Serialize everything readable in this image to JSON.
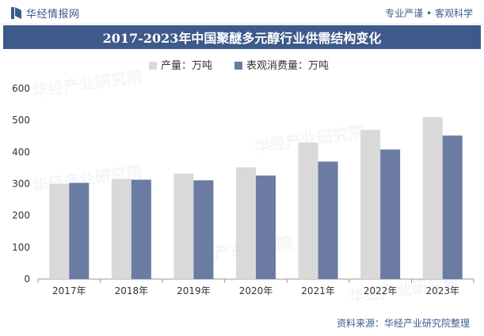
{
  "header": {
    "brand_name": "华经情报网",
    "tagline": "专业严谨 • 客观科学"
  },
  "title": "2017-2023年中国聚醚多元醇行业供需结构变化",
  "source": "资料来源：华经产业研究院整理",
  "watermark": "华经产业研究院",
  "colors": {
    "production": "#d9d9d9",
    "consumption": "#6b7ba3",
    "title_bar": "#3e5a8a",
    "brand": "#3b5a8c"
  },
  "chart_data": {
    "type": "bar",
    "title": "2017-2023年中国聚醚多元醇行业供需结构变化",
    "categories": [
      "2017年",
      "2018年",
      "2019年",
      "2020年",
      "2021年",
      "2022年",
      "2023年"
    ],
    "series": [
      {
        "name": "产量：万吨",
        "values": [
          300,
          315,
          332,
          352,
          430,
          470,
          510
        ]
      },
      {
        "name": "表观消费量：万吨",
        "values": [
          303,
          313,
          311,
          326,
          370,
          408,
          452
        ]
      }
    ],
    "yticks": [
      0,
      100,
      200,
      300,
      400,
      500,
      600
    ],
    "ylim": [
      0,
      600
    ],
    "xlabel": "",
    "ylabel": "",
    "grid": false,
    "legend_position": "top"
  }
}
